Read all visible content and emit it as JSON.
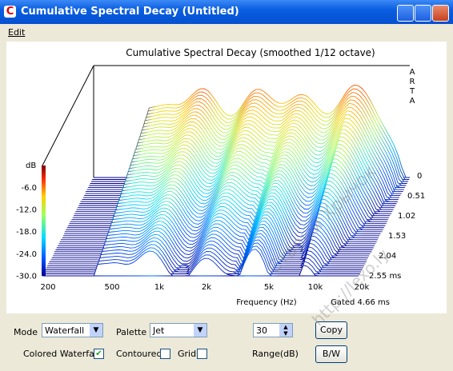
{
  "window": {
    "title": "Cumulative Spectral Decay  (Untitled)"
  },
  "menu": {
    "items": [
      "Edit"
    ]
  },
  "plot": {
    "title": "Cumulative Spectral Decay (smoothed 1/12 octave)",
    "x_label": "Frequency (Hz)",
    "x_ticks": [
      "200",
      "500",
      "1k",
      "2k",
      "5k",
      "10k",
      "20k"
    ],
    "y_unit": "dB",
    "y_ticks": [
      "-6.0",
      "-12.0",
      "-18.0",
      "-24.0",
      "-30.0"
    ],
    "z_ticks": [
      "0",
      "0.51",
      "1.02",
      "1.53",
      "2.04",
      "2.55 ms"
    ],
    "gated": "Gated 4.66 ms",
    "brand": [
      "A",
      "R",
      "T",
      "A"
    ],
    "watermark": [
      "Старый Хрычок",
      "http://lexo.ly"
    ]
  },
  "controls": {
    "mode_label": "Mode",
    "mode_value": "Waterfall",
    "palette_label": "Palette",
    "palette_value": "Jet",
    "range_value": "30",
    "range_label": "Range(dB)",
    "copy": "Copy",
    "bw": "B/W",
    "colored_waterfall": "Colored Waterfall",
    "contoured": "Contoured",
    "grid": "Grid"
  }
}
